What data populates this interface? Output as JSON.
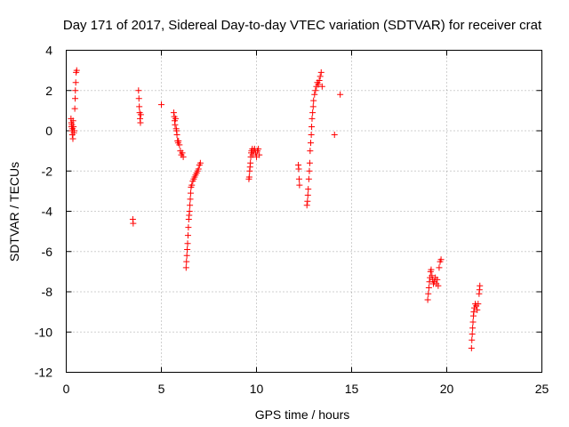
{
  "chart_data": {
    "type": "scatter",
    "title": "Day 171 of 2017, Sidereal Day-to-day VTEC variation (SDTVAR) for receiver crat",
    "xlabel": "GPS time / hours",
    "ylabel": "SDTVAR / TECUs",
    "xlim": [
      0,
      25
    ],
    "ylim": [
      -12,
      4
    ],
    "xticks": [
      0,
      5,
      10,
      15,
      20,
      25
    ],
    "yticks": [
      -12,
      -10,
      -8,
      -6,
      -4,
      -2,
      0,
      2,
      4
    ],
    "xtick_labels": [
      "0",
      "5",
      "10",
      "15",
      "20",
      "25"
    ],
    "ytick_labels": [
      "-12",
      "-10",
      "-8",
      "-6",
      "-4",
      "-2",
      "0",
      "2",
      "4"
    ],
    "grid": true,
    "marker": "+",
    "color": "#ff0000",
    "series": [
      {
        "name": "SDTVAR",
        "points": [
          [
            0.25,
            0.6
          ],
          [
            0.27,
            0.4
          ],
          [
            0.28,
            0.2
          ],
          [
            0.3,
            0.0
          ],
          [
            0.3,
            0.3
          ],
          [
            0.32,
            -0.2
          ],
          [
            0.33,
            0.1
          ],
          [
            0.35,
            -0.4
          ],
          [
            0.36,
            0.5
          ],
          [
            0.38,
            0.2
          ],
          [
            0.4,
            -0.1
          ],
          [
            0.42,
            0.0
          ],
          [
            0.45,
            1.1
          ],
          [
            0.47,
            1.6
          ],
          [
            0.48,
            2.0
          ],
          [
            0.5,
            2.4
          ],
          [
            0.52,
            2.9
          ],
          [
            0.55,
            3.0
          ],
          [
            3.5,
            -4.4
          ],
          [
            3.52,
            -4.6
          ],
          [
            3.8,
            2.0
          ],
          [
            3.82,
            1.6
          ],
          [
            3.84,
            1.2
          ],
          [
            3.86,
            0.9
          ],
          [
            3.88,
            0.6
          ],
          [
            3.9,
            0.4
          ],
          [
            3.92,
            0.8
          ],
          [
            5.0,
            1.3
          ],
          [
            5.65,
            0.9
          ],
          [
            5.68,
            0.7
          ],
          [
            5.7,
            0.5
          ],
          [
            5.72,
            0.3
          ],
          [
            5.75,
            0.6
          ],
          [
            5.78,
            0.1
          ],
          [
            5.8,
            0.0
          ],
          [
            5.82,
            -0.2
          ],
          [
            5.85,
            -0.5
          ],
          [
            5.88,
            -0.6
          ],
          [
            5.9,
            -0.5
          ],
          [
            5.95,
            -0.7
          ],
          [
            6.0,
            -1.0
          ],
          [
            6.05,
            -1.2
          ],
          [
            6.1,
            -1.1
          ],
          [
            6.15,
            -1.3
          ],
          [
            6.3,
            -6.8
          ],
          [
            6.32,
            -6.5
          ],
          [
            6.34,
            -6.2
          ],
          [
            6.36,
            -5.9
          ],
          [
            6.38,
            -5.6
          ],
          [
            6.4,
            -5.2
          ],
          [
            6.42,
            -4.8
          ],
          [
            6.44,
            -4.4
          ],
          [
            6.46,
            -4.2
          ],
          [
            6.48,
            -4.0
          ],
          [
            6.5,
            -3.7
          ],
          [
            6.52,
            -3.4
          ],
          [
            6.54,
            -3.1
          ],
          [
            6.56,
            -2.8
          ],
          [
            6.6,
            -2.7
          ],
          [
            6.65,
            -2.5
          ],
          [
            6.7,
            -2.4
          ],
          [
            6.75,
            -2.3
          ],
          [
            6.8,
            -2.2
          ],
          [
            6.85,
            -2.1
          ],
          [
            6.9,
            -2.0
          ],
          [
            6.95,
            -1.9
          ],
          [
            7.0,
            -1.7
          ],
          [
            7.05,
            -1.6
          ],
          [
            9.6,
            -2.4
          ],
          [
            9.62,
            -2.3
          ],
          [
            9.64,
            -2.0
          ],
          [
            9.66,
            -1.8
          ],
          [
            9.68,
            -1.6
          ],
          [
            9.7,
            -1.3
          ],
          [
            9.72,
            -1.1
          ],
          [
            9.74,
            -1.0
          ],
          [
            9.78,
            -0.9
          ],
          [
            9.8,
            -1.2
          ],
          [
            9.85,
            -1.0
          ],
          [
            9.9,
            -0.9
          ],
          [
            9.95,
            -1.1
          ],
          [
            10.0,
            -1.3
          ],
          [
            10.05,
            -1.0
          ],
          [
            10.1,
            -0.9
          ],
          [
            10.15,
            -1.2
          ],
          [
            12.2,
            -1.7
          ],
          [
            12.22,
            -1.9
          ],
          [
            12.24,
            -2.4
          ],
          [
            12.26,
            -2.7
          ],
          [
            12.65,
            -3.7
          ],
          [
            12.68,
            -3.5
          ],
          [
            12.7,
            -3.2
          ],
          [
            12.72,
            -2.9
          ],
          [
            12.75,
            -2.4
          ],
          [
            12.78,
            -2.0
          ],
          [
            12.8,
            -1.6
          ],
          [
            12.82,
            -1.0
          ],
          [
            12.85,
            -0.6
          ],
          [
            12.88,
            -0.2
          ],
          [
            12.9,
            0.2
          ],
          [
            12.92,
            0.6
          ],
          [
            12.95,
            0.9
          ],
          [
            12.98,
            1.2
          ],
          [
            13.0,
            1.5
          ],
          [
            13.05,
            1.8
          ],
          [
            13.1,
            2.0
          ],
          [
            13.15,
            2.2
          ],
          [
            13.2,
            2.4
          ],
          [
            13.25,
            2.3
          ],
          [
            13.3,
            2.5
          ],
          [
            13.35,
            2.7
          ],
          [
            13.4,
            2.9
          ],
          [
            13.45,
            2.2
          ],
          [
            14.1,
            -0.2
          ],
          [
            14.4,
            1.8
          ],
          [
            19.0,
            -8.4
          ],
          [
            19.03,
            -8.1
          ],
          [
            19.06,
            -7.8
          ],
          [
            19.09,
            -7.5
          ],
          [
            19.12,
            -7.3
          ],
          [
            19.15,
            -7.0
          ],
          [
            19.18,
            -6.9
          ],
          [
            19.22,
            -7.2
          ],
          [
            19.26,
            -7.4
          ],
          [
            19.3,
            -7.6
          ],
          [
            19.35,
            -7.5
          ],
          [
            19.4,
            -7.3
          ],
          [
            19.45,
            -7.6
          ],
          [
            19.5,
            -7.4
          ],
          [
            19.55,
            -7.7
          ],
          [
            19.6,
            -6.8
          ],
          [
            19.65,
            -6.5
          ],
          [
            19.7,
            -6.4
          ],
          [
            21.3,
            -10.8
          ],
          [
            21.32,
            -10.4
          ],
          [
            21.34,
            -10.1
          ],
          [
            21.36,
            -9.8
          ],
          [
            21.38,
            -9.5
          ],
          [
            21.4,
            -9.2
          ],
          [
            21.42,
            -9.0
          ],
          [
            21.45,
            -8.8
          ],
          [
            21.5,
            -8.6
          ],
          [
            21.55,
            -8.7
          ],
          [
            21.6,
            -8.9
          ],
          [
            21.65,
            -8.6
          ],
          [
            21.7,
            -8.1
          ],
          [
            21.72,
            -7.9
          ],
          [
            21.74,
            -7.7
          ]
        ]
      }
    ]
  }
}
